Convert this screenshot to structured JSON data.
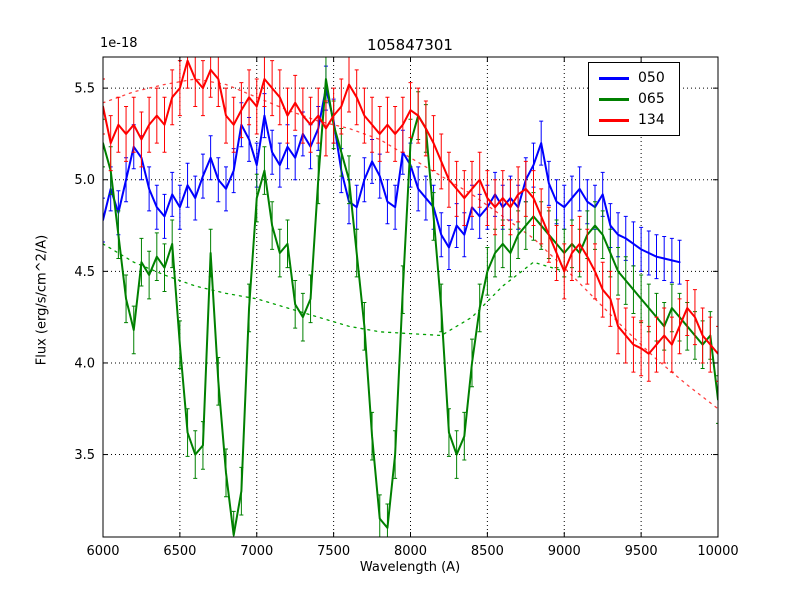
{
  "chart_data": {
    "type": "line",
    "title": "105847301",
    "xlabel": "Wavelength (A)",
    "ylabel": "Flux (erg/s/cm^2/A)",
    "y_offset_label": "1e-18",
    "xlim": [
      6000,
      10000
    ],
    "ylim": [
      3.05,
      5.67
    ],
    "xticks": [
      6000,
      6500,
      7000,
      7500,
      8000,
      8500,
      9000,
      9500,
      10000
    ],
    "yticks": [
      3.5,
      4.0,
      4.5,
      5.0,
      5.5
    ],
    "grid": true,
    "grid_style": "dotted",
    "legend_position": "upper right",
    "series": [
      {
        "name": "050",
        "color": "#0000ff",
        "style": "solid",
        "err": 0.12,
        "in_legend": true,
        "points": [
          [
            6000,
            4.78
          ],
          [
            6050,
            4.95
          ],
          [
            6100,
            4.82
          ],
          [
            6150,
            5.0
          ],
          [
            6200,
            5.18
          ],
          [
            6250,
            5.12
          ],
          [
            6300,
            4.95
          ],
          [
            6350,
            4.85
          ],
          [
            6400,
            4.8
          ],
          [
            6450,
            4.92
          ],
          [
            6500,
            4.85
          ],
          [
            6550,
            4.97
          ],
          [
            6600,
            4.9
          ],
          [
            6650,
            5.02
          ],
          [
            6700,
            5.12
          ],
          [
            6750,
            5.0
          ],
          [
            6800,
            4.95
          ],
          [
            6850,
            5.05
          ],
          [
            6900,
            5.3
          ],
          [
            6950,
            5.22
          ],
          [
            7000,
            5.08
          ],
          [
            7050,
            5.35
          ],
          [
            7100,
            5.15
          ],
          [
            7150,
            5.08
          ],
          [
            7200,
            5.18
          ],
          [
            7250,
            5.12
          ],
          [
            7300,
            5.25
          ],
          [
            7350,
            5.18
          ],
          [
            7400,
            5.28
          ],
          [
            7450,
            5.5
          ],
          [
            7500,
            5.32
          ],
          [
            7550,
            5.05
          ],
          [
            7600,
            4.88
          ],
          [
            7650,
            4.85
          ],
          [
            7700,
            5.0
          ],
          [
            7750,
            5.1
          ],
          [
            7800,
            5.02
          ],
          [
            7850,
            4.88
          ],
          [
            7900,
            4.85
          ],
          [
            7950,
            5.15
          ],
          [
            8000,
            5.08
          ],
          [
            8050,
            4.95
          ],
          [
            8100,
            4.9
          ],
          [
            8150,
            4.85
          ],
          [
            8200,
            4.7
          ],
          [
            8250,
            4.63
          ],
          [
            8300,
            4.75
          ],
          [
            8350,
            4.7
          ],
          [
            8400,
            4.85
          ],
          [
            8450,
            4.8
          ],
          [
            8500,
            4.85
          ],
          [
            8550,
            4.92
          ],
          [
            8600,
            4.85
          ],
          [
            8650,
            4.9
          ],
          [
            8700,
            4.85
          ],
          [
            8750,
            5.0
          ],
          [
            8800,
            5.08
          ],
          [
            8850,
            5.2
          ],
          [
            8900,
            4.98
          ],
          [
            8950,
            4.88
          ],
          [
            9000,
            4.85
          ],
          [
            9050,
            4.9
          ],
          [
            9100,
            4.95
          ],
          [
            9150,
            4.88
          ],
          [
            9200,
            4.85
          ],
          [
            9250,
            4.92
          ],
          [
            9300,
            4.75
          ],
          [
            9350,
            4.7
          ],
          [
            9400,
            4.68
          ],
          [
            9450,
            4.65
          ],
          [
            9500,
            4.62
          ],
          [
            9550,
            4.6
          ],
          [
            9600,
            4.58
          ],
          [
            9650,
            4.57
          ],
          [
            9700,
            4.56
          ],
          [
            9750,
            4.55
          ]
        ]
      },
      {
        "name": "065",
        "color": "#008000",
        "style": "solid",
        "err": 0.13,
        "in_legend": true,
        "points": [
          [
            6000,
            5.2
          ],
          [
            6050,
            5.05
          ],
          [
            6100,
            4.7
          ],
          [
            6150,
            4.35
          ],
          [
            6200,
            4.18
          ],
          [
            6250,
            4.55
          ],
          [
            6300,
            4.48
          ],
          [
            6350,
            4.58
          ],
          [
            6400,
            4.52
          ],
          [
            6450,
            4.65
          ],
          [
            6500,
            4.1
          ],
          [
            6550,
            3.62
          ],
          [
            6600,
            3.5
          ],
          [
            6650,
            3.55
          ],
          [
            6700,
            4.6
          ],
          [
            6750,
            3.9
          ],
          [
            6800,
            3.4
          ],
          [
            6850,
            3.06
          ],
          [
            6900,
            3.3
          ],
          [
            6950,
            4.3
          ],
          [
            7000,
            4.9
          ],
          [
            7050,
            5.05
          ],
          [
            7100,
            4.75
          ],
          [
            7150,
            4.6
          ],
          [
            7200,
            4.65
          ],
          [
            7250,
            4.32
          ],
          [
            7300,
            4.25
          ],
          [
            7350,
            4.35
          ],
          [
            7400,
            5.0
          ],
          [
            7450,
            5.55
          ],
          [
            7500,
            5.3
          ],
          [
            7550,
            5.15
          ],
          [
            7600,
            5.0
          ],
          [
            7650,
            4.6
          ],
          [
            7700,
            4.2
          ],
          [
            7750,
            3.6
          ],
          [
            7800,
            3.15
          ],
          [
            7850,
            3.1
          ],
          [
            7900,
            3.5
          ],
          [
            7950,
            4.4
          ],
          [
            8000,
            5.2
          ],
          [
            8050,
            5.35
          ],
          [
            8100,
            5.28
          ],
          [
            8150,
            4.8
          ],
          [
            8200,
            4.3
          ],
          [
            8250,
            3.62
          ],
          [
            8300,
            3.5
          ],
          [
            8350,
            3.6
          ],
          [
            8400,
            4.0
          ],
          [
            8450,
            4.3
          ],
          [
            8500,
            4.5
          ],
          [
            8550,
            4.6
          ],
          [
            8600,
            4.65
          ],
          [
            8650,
            4.6
          ],
          [
            8700,
            4.7
          ],
          [
            8750,
            4.75
          ],
          [
            8800,
            4.8
          ],
          [
            8850,
            4.75
          ],
          [
            8900,
            4.7
          ],
          [
            8950,
            4.65
          ],
          [
            9000,
            4.6
          ],
          [
            9050,
            4.65
          ],
          [
            9100,
            4.6
          ],
          [
            9150,
            4.7
          ],
          [
            9200,
            4.75
          ],
          [
            9250,
            4.7
          ],
          [
            9300,
            4.6
          ],
          [
            9350,
            4.5
          ],
          [
            9400,
            4.45
          ],
          [
            9450,
            4.4
          ],
          [
            9500,
            4.35
          ],
          [
            9550,
            4.3
          ],
          [
            9600,
            4.25
          ],
          [
            9650,
            4.2
          ],
          [
            9700,
            4.3
          ],
          [
            9750,
            4.25
          ],
          [
            9800,
            4.2
          ],
          [
            9850,
            4.15
          ],
          [
            9900,
            4.1
          ],
          [
            9950,
            4.15
          ],
          [
            10000,
            3.8
          ]
        ]
      },
      {
        "name": "134",
        "color": "#ff0000",
        "style": "solid",
        "err": 0.15,
        "in_legend": true,
        "points": [
          [
            6000,
            5.4
          ],
          [
            6050,
            5.2
          ],
          [
            6100,
            5.3
          ],
          [
            6150,
            5.25
          ],
          [
            6200,
            5.3
          ],
          [
            6250,
            5.22
          ],
          [
            6300,
            5.3
          ],
          [
            6350,
            5.35
          ],
          [
            6400,
            5.3
          ],
          [
            6450,
            5.45
          ],
          [
            6500,
            5.5
          ],
          [
            6550,
            5.65
          ],
          [
            6600,
            5.55
          ],
          [
            6650,
            5.5
          ],
          [
            6700,
            5.6
          ],
          [
            6750,
            5.55
          ],
          [
            6800,
            5.35
          ],
          [
            6850,
            5.3
          ],
          [
            6900,
            5.38
          ],
          [
            6950,
            5.45
          ],
          [
            7000,
            5.4
          ],
          [
            7050,
            5.55
          ],
          [
            7100,
            5.5
          ],
          [
            7150,
            5.45
          ],
          [
            7200,
            5.35
          ],
          [
            7250,
            5.42
          ],
          [
            7300,
            5.35
          ],
          [
            7350,
            5.3
          ],
          [
            7400,
            5.35
          ],
          [
            7450,
            5.28
          ],
          [
            7500,
            5.35
          ],
          [
            7550,
            5.4
          ],
          [
            7600,
            5.52
          ],
          [
            7650,
            5.45
          ],
          [
            7700,
            5.35
          ],
          [
            7750,
            5.3
          ],
          [
            7800,
            5.25
          ],
          [
            7850,
            5.3
          ],
          [
            7900,
            5.25
          ],
          [
            7950,
            5.3
          ],
          [
            8000,
            5.38
          ],
          [
            8050,
            5.35
          ],
          [
            8100,
            5.28
          ],
          [
            8150,
            5.2
          ],
          [
            8200,
            5.1
          ],
          [
            8250,
            5.0
          ],
          [
            8300,
            4.95
          ],
          [
            8350,
            4.9
          ],
          [
            8400,
            4.95
          ],
          [
            8450,
            5.0
          ],
          [
            8500,
            4.9
          ],
          [
            8550,
            4.85
          ],
          [
            8600,
            4.9
          ],
          [
            8650,
            4.85
          ],
          [
            8700,
            4.92
          ],
          [
            8750,
            4.95
          ],
          [
            8800,
            4.9
          ],
          [
            8850,
            4.8
          ],
          [
            8900,
            4.7
          ],
          [
            8950,
            4.6
          ],
          [
            9000,
            4.5
          ],
          [
            9050,
            4.6
          ],
          [
            9100,
            4.65
          ],
          [
            9150,
            4.58
          ],
          [
            9200,
            4.5
          ],
          [
            9250,
            4.4
          ],
          [
            9300,
            4.35
          ],
          [
            9350,
            4.2
          ],
          [
            9400,
            4.15
          ],
          [
            9450,
            4.1
          ],
          [
            9500,
            4.08
          ],
          [
            9550,
            4.05
          ],
          [
            9600,
            4.1
          ],
          [
            9650,
            4.15
          ],
          [
            9700,
            4.1
          ],
          [
            9750,
            4.2
          ],
          [
            9800,
            4.3
          ],
          [
            9850,
            4.25
          ],
          [
            9900,
            4.15
          ],
          [
            9950,
            4.1
          ],
          [
            10000,
            4.05
          ]
        ]
      },
      {
        "name": "065-model-dotted",
        "color": "#00a000",
        "style": "dotted",
        "err": 0,
        "in_legend": false,
        "points": [
          [
            6000,
            4.65
          ],
          [
            6200,
            4.55
          ],
          [
            6400,
            4.48
          ],
          [
            6600,
            4.42
          ],
          [
            6800,
            4.38
          ],
          [
            7000,
            4.35
          ],
          [
            7200,
            4.3
          ],
          [
            7400,
            4.25
          ],
          [
            7600,
            4.2
          ],
          [
            7800,
            4.17
          ],
          [
            8000,
            4.16
          ],
          [
            8200,
            4.15
          ],
          [
            8400,
            4.25
          ],
          [
            8600,
            4.42
          ],
          [
            8800,
            4.55
          ],
          [
            9000,
            4.5
          ]
        ]
      },
      {
        "name": "134-model-dotted",
        "color": "#ff4040",
        "style": "dotted",
        "err": 0,
        "in_legend": false,
        "points": [
          [
            6000,
            5.42
          ],
          [
            6200,
            5.48
          ],
          [
            6400,
            5.52
          ],
          [
            6600,
            5.55
          ],
          [
            6800,
            5.52
          ],
          [
            7000,
            5.45
          ],
          [
            7200,
            5.38
          ],
          [
            7400,
            5.32
          ],
          [
            7600,
            5.28
          ],
          [
            7800,
            5.22
          ],
          [
            8000,
            5.12
          ],
          [
            8200,
            5.02
          ],
          [
            8400,
            4.92
          ],
          [
            8600,
            4.8
          ],
          [
            8800,
            4.68
          ],
          [
            9000,
            4.52
          ],
          [
            9200,
            4.35
          ],
          [
            9400,
            4.18
          ],
          [
            9600,
            4.02
          ],
          [
            9800,
            3.88
          ],
          [
            10000,
            3.75
          ]
        ]
      }
    ],
    "legend_entries": [
      "050",
      "065",
      "134"
    ]
  }
}
